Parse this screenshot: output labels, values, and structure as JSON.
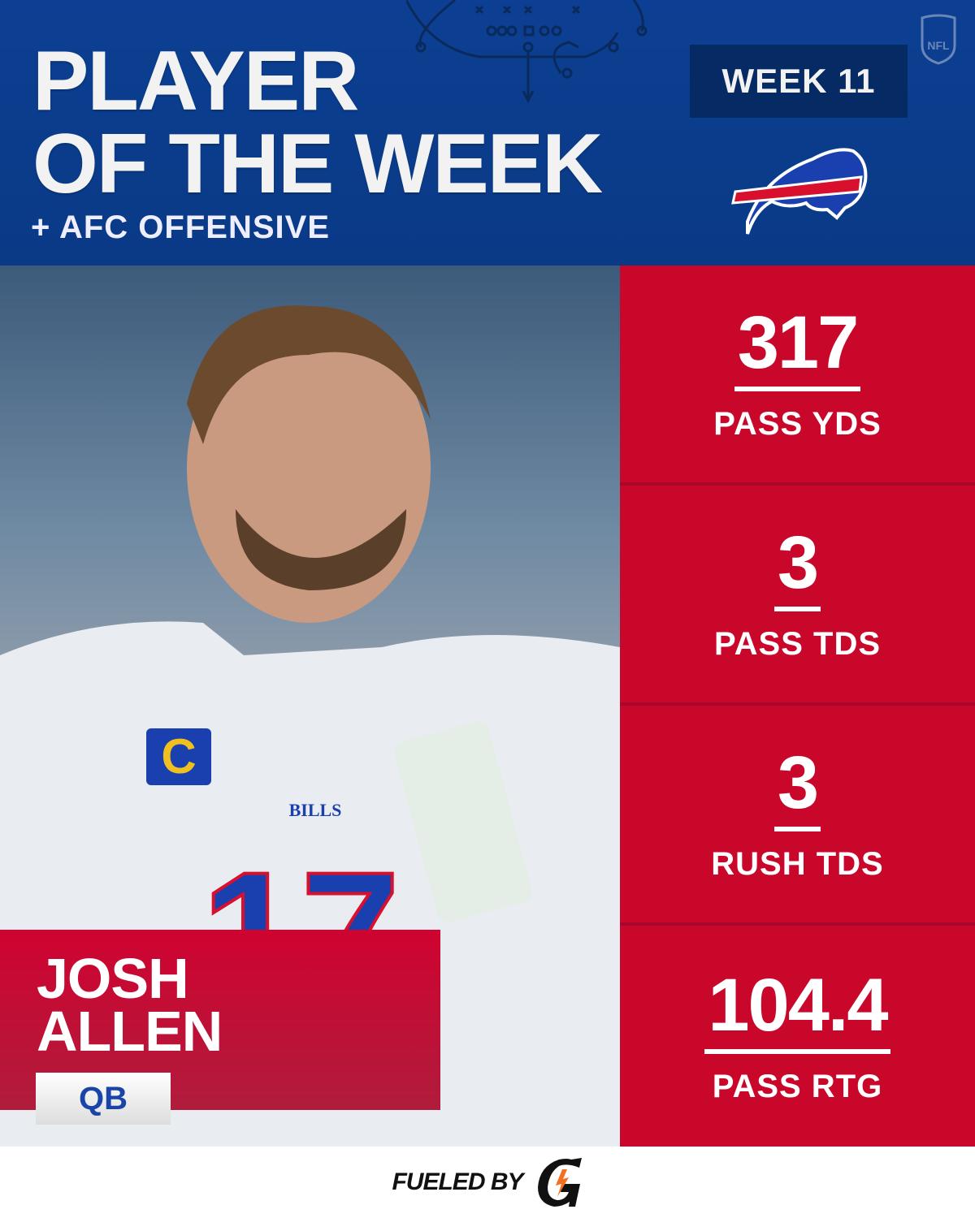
{
  "header": {
    "title_line1": "PLAYER",
    "title_line2": "OF THE WEEK",
    "subtitle": "+ AFC OFFENSIVE",
    "week_badge": "WEEK 11",
    "league_logo": "NFL",
    "team_logo": "buffalo-bills-logo"
  },
  "player": {
    "first_name": "JOSH",
    "last_name": "ALLEN",
    "position": "QB",
    "jersey_text": "BILLS",
    "jersey_number": "17"
  },
  "stats": [
    {
      "value": "317",
      "label": "PASS YDS"
    },
    {
      "value": "3",
      "label": "PASS TDS"
    },
    {
      "value": "3",
      "label": "RUSH TDS"
    },
    {
      "value": "104.4",
      "label": "PASS RTG"
    }
  ],
  "footer": {
    "text": "FUELED BY",
    "sponsor_logo": "gatorade-g"
  },
  "colors": {
    "blue": "#0c3f93",
    "dark_blue": "#062a63",
    "red": "#c8072b",
    "white": "#ffffff"
  }
}
